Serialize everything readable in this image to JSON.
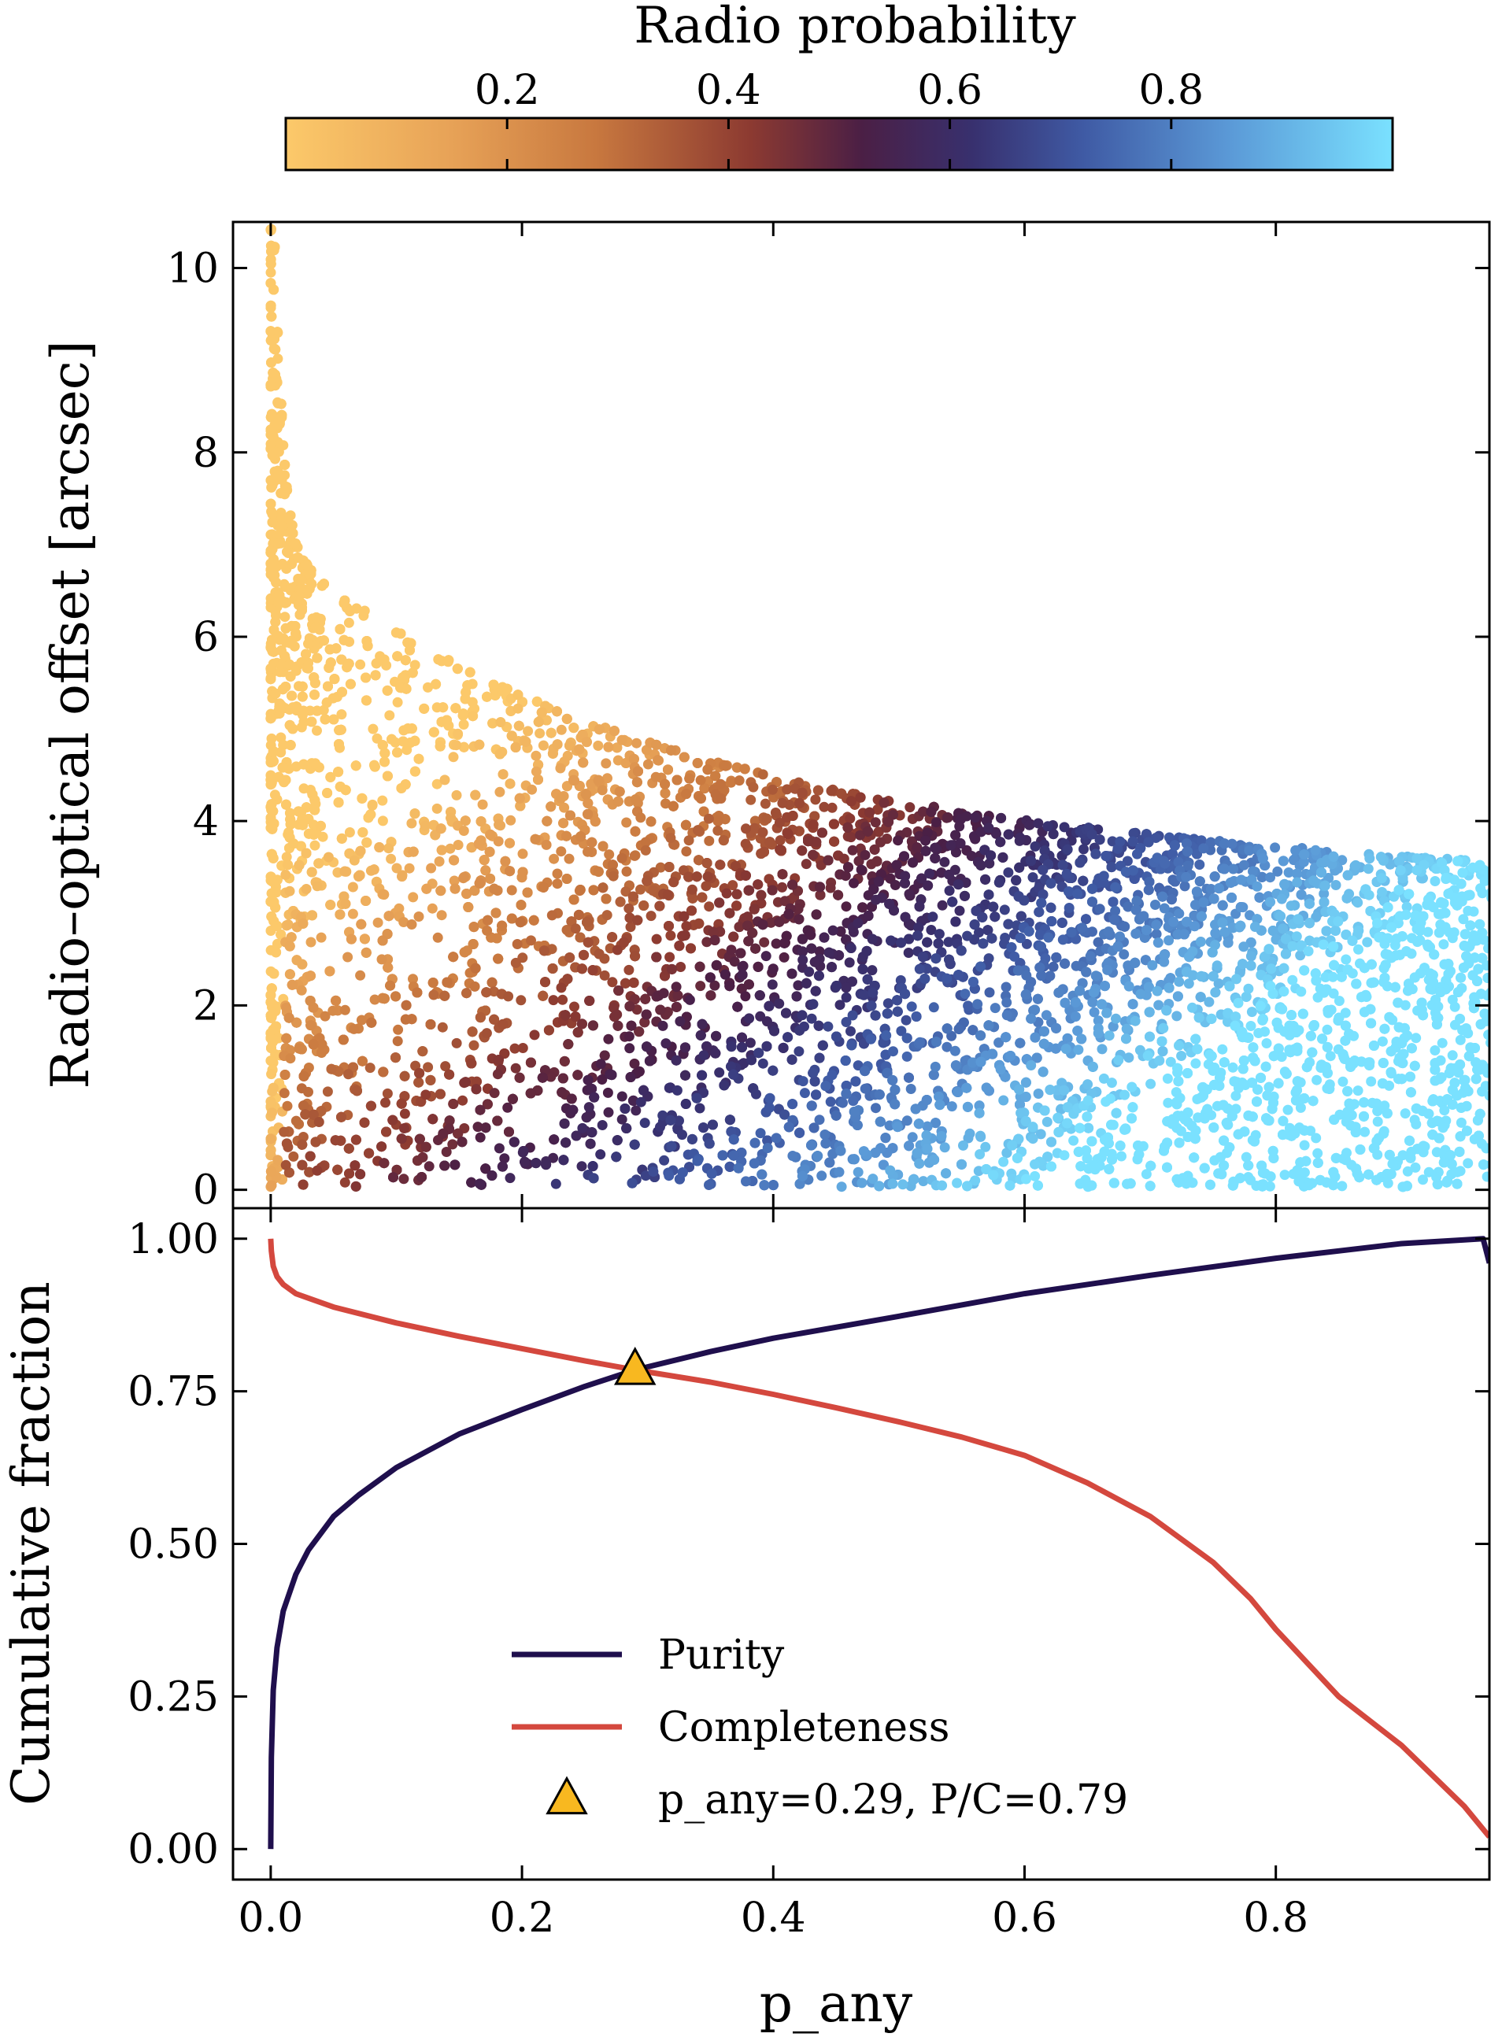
{
  "chart_data": [
    {
      "type": "colorbar",
      "title": "Radio probability",
      "range": [
        0.0,
        1.0
      ],
      "ticks": [
        0.2,
        0.4,
        0.6,
        0.8
      ],
      "tick_labels": [
        "0.2",
        "0.4",
        "0.6",
        "0.8"
      ],
      "colormap": [
        "#fcc96a",
        "#e7a257",
        "#c8783f",
        "#8c3a31",
        "#4b1f45",
        "#38306e",
        "#3f5aa4",
        "#5a98d6",
        "#7ae1ff"
      ]
    },
    {
      "type": "scatter",
      "title": "",
      "xlabel": "",
      "ylabel": "Radio–optical offset [arcsec]",
      "xlim": [
        -0.03,
        0.97
      ],
      "ylim": [
        -0.2,
        10.5
      ],
      "yticks": [
        0,
        2,
        4,
        6,
        8,
        10
      ],
      "ytick_labels": [
        "0",
        "2",
        "4",
        "6",
        "8",
        "10"
      ],
      "color_by": "Radio probability",
      "point_count_approx": 60000,
      "description_of_distribution": "dense cloud; max offset ~10 near p_any=0 decreasing to ~3.5 at p_any=0.97; colour increases with p_any and decreases with offset"
    },
    {
      "type": "line",
      "title": "",
      "xlabel": "p_any",
      "ylabel": "Cumulative fraction",
      "xlim": [
        -0.03,
        0.97
      ],
      "ylim": [
        -0.05,
        1.05
      ],
      "xticks": [
        0.0,
        0.2,
        0.4,
        0.6,
        0.8
      ],
      "xtick_labels": [
        "0.0",
        "0.2",
        "0.4",
        "0.6",
        "0.8"
      ],
      "yticks": [
        0.0,
        0.25,
        0.5,
        0.75,
        1.0
      ],
      "ytick_labels": [
        "0.00",
        "0.25",
        "0.50",
        "0.75",
        "1.00"
      ],
      "series": [
        {
          "name": "Purity",
          "color": "#1f0f4d",
          "x": [
            0.0,
            0.0005,
            0.002,
            0.005,
            0.01,
            0.02,
            0.03,
            0.05,
            0.07,
            0.1,
            0.15,
            0.2,
            0.25,
            0.29,
            0.35,
            0.4,
            0.5,
            0.6,
            0.7,
            0.8,
            0.85,
            0.9,
            0.95,
            0.965,
            0.97
          ],
          "y": [
            0.0,
            0.15,
            0.26,
            0.33,
            0.39,
            0.45,
            0.49,
            0.545,
            0.58,
            0.625,
            0.68,
            0.72,
            0.758,
            0.785,
            0.815,
            0.837,
            0.873,
            0.91,
            0.94,
            0.968,
            0.98,
            0.992,
            0.998,
            1.0,
            0.96
          ]
        },
        {
          "name": "Completeness",
          "color": "#d4483e",
          "x": [
            0.0,
            0.0005,
            0.002,
            0.005,
            0.01,
            0.02,
            0.05,
            0.1,
            0.15,
            0.2,
            0.25,
            0.29,
            0.35,
            0.4,
            0.45,
            0.5,
            0.55,
            0.6,
            0.65,
            0.7,
            0.75,
            0.78,
            0.8,
            0.85,
            0.9,
            0.95,
            0.97
          ],
          "y": [
            1.0,
            0.98,
            0.955,
            0.938,
            0.925,
            0.91,
            0.888,
            0.862,
            0.84,
            0.82,
            0.8,
            0.785,
            0.765,
            0.745,
            0.723,
            0.7,
            0.675,
            0.645,
            0.6,
            0.545,
            0.47,
            0.41,
            0.36,
            0.25,
            0.17,
            0.07,
            0.02
          ]
        }
      ],
      "markers": [
        {
          "name": "p_any=0.29, P/C=0.79",
          "x": 0.29,
          "y": 0.785,
          "shape": "triangle",
          "color": "#f8b820"
        }
      ],
      "legend": {
        "position": "lower center",
        "entries": [
          "Purity",
          "Completeness",
          "p_any=0.29, P/C=0.79"
        ]
      }
    }
  ]
}
